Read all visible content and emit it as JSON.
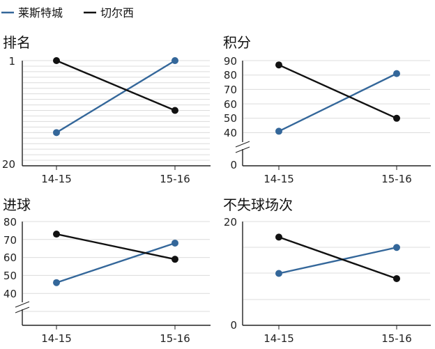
{
  "legend": [
    {
      "name": "莱斯特城",
      "color": "#34679a"
    },
    {
      "name": "切尔西",
      "color": "#111111"
    }
  ],
  "chart_data": [
    {
      "type": "line",
      "title": "排名",
      "categories": [
        "14-15",
        "15-16"
      ],
      "y_inverted": true,
      "ylim": [
        1,
        20
      ],
      "yticks": [
        "1",
        "20"
      ],
      "series": [
        {
          "name": "莱斯特城",
          "color": "#34679a",
          "values": [
            14,
            1
          ]
        },
        {
          "name": "切尔西",
          "color": "#111111",
          "values": [
            1,
            10
          ]
        }
      ]
    },
    {
      "type": "line",
      "title": "积分",
      "categories": [
        "14-15",
        "15-16"
      ],
      "axis_break": true,
      "yticks": [
        "90",
        "80",
        "70",
        "60",
        "50",
        "40",
        "0"
      ],
      "series": [
        {
          "name": "莱斯特城",
          "color": "#34679a",
          "values": [
            41,
            81
          ]
        },
        {
          "name": "切尔西",
          "color": "#111111",
          "values": [
            87,
            50
          ]
        }
      ]
    },
    {
      "type": "line",
      "title": "进球",
      "categories": [
        "14-15",
        "15-16"
      ],
      "axis_break": true,
      "yticks": [
        "80",
        "70",
        "60",
        "50",
        "40"
      ],
      "series": [
        {
          "name": "莱斯特城",
          "color": "#34679a",
          "values": [
            46,
            68
          ]
        },
        {
          "name": "切尔西",
          "color": "#111111",
          "values": [
            73,
            59
          ]
        }
      ]
    },
    {
      "type": "line",
      "title": "不失球场次",
      "categories": [
        "14-15",
        "15-16"
      ],
      "ylim": [
        0,
        20
      ],
      "yticks": [
        "20",
        "0"
      ],
      "series": [
        {
          "name": "莱斯特城",
          "color": "#34679a",
          "values": [
            10,
            15
          ]
        },
        {
          "name": "切尔西",
          "color": "#111111",
          "values": [
            17,
            9
          ]
        }
      ]
    }
  ]
}
